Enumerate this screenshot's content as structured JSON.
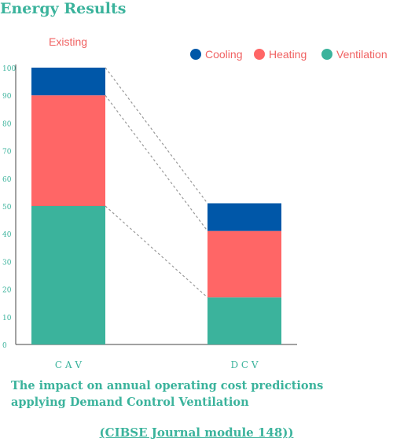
{
  "chart_data": {
    "type": "bar",
    "stacked": true,
    "title": "Energy Results",
    "subtitle": "Existing",
    "categories": [
      "C A V",
      "D C V"
    ],
    "series": [
      {
        "name": "Ventilation",
        "values": [
          50,
          17
        ],
        "color": "#3bb39c"
      },
      {
        "name": "Heating",
        "values": [
          40,
          24
        ],
        "color": "#ff6666"
      },
      {
        "name": "Cooling",
        "values": [
          10,
          10
        ],
        "color": "#0057a8"
      }
    ],
    "yticks": [
      0,
      10,
      20,
      30,
      40,
      50,
      60,
      70,
      80,
      90,
      100
    ],
    "ylim": [
      0,
      100
    ],
    "legend_position": "top-right",
    "grid": false,
    "connector_lines": "dashed"
  },
  "caption": "The impact on annual operating cost predictions applying Demand Control Ventilation",
  "source": "(CIBSE Journal module 148))",
  "colors": {
    "accent": "#3bb39c",
    "legend_text": "#f06262",
    "axis": "#444444"
  }
}
